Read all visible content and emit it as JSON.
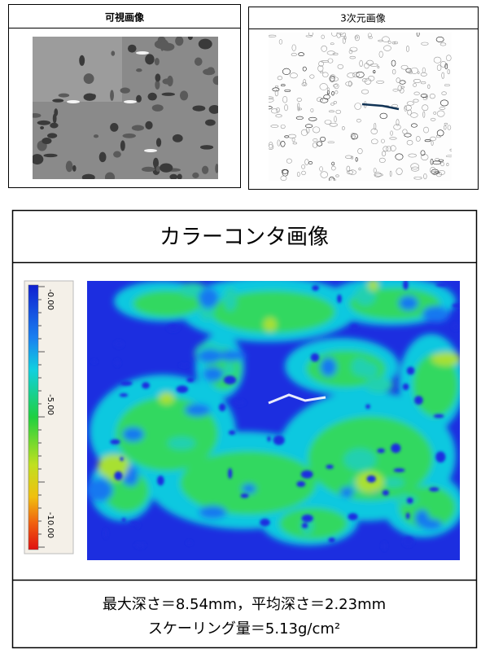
{
  "panels": [
    {
      "title": "可視画像"
    },
    {
      "title": "3次元画像"
    }
  ],
  "contour": {
    "title": "カラーコンタ画像",
    "colorbar_labels": [
      "-0.00",
      "-5.00",
      "-10.00"
    ],
    "results": [
      "最大深さ＝8.54mm，平均深さ＝2.23mm",
      "スケーリング量＝5.13g/cm²"
    ]
  }
}
